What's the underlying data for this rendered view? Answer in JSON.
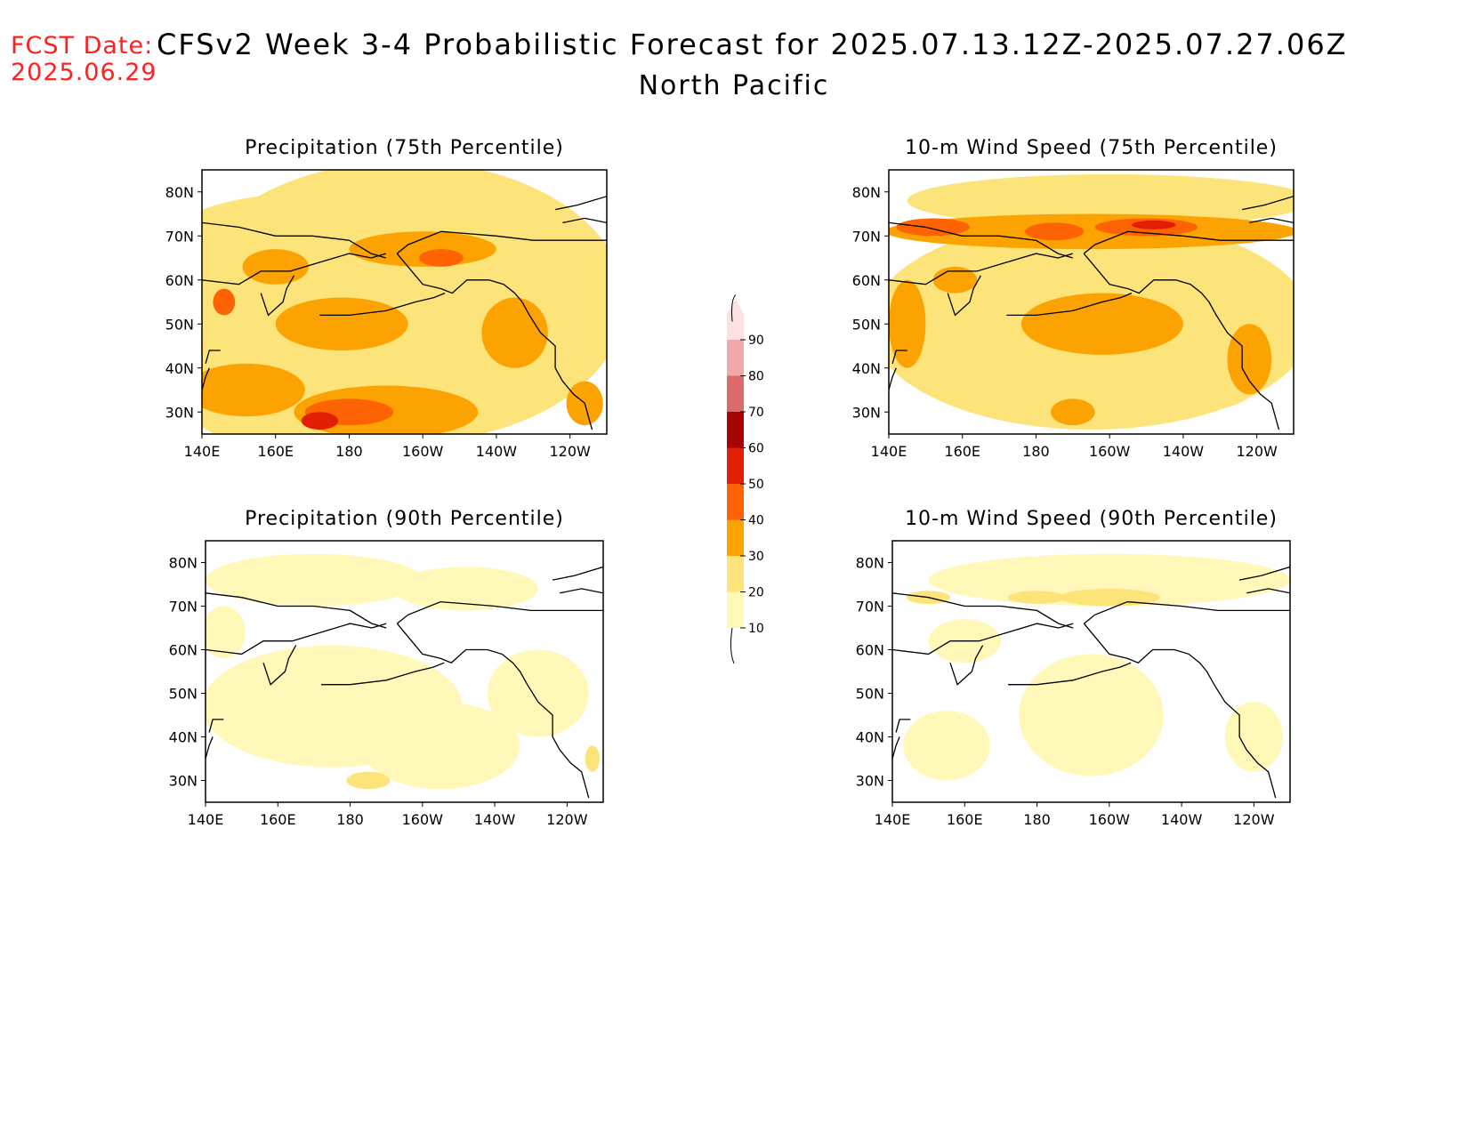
{
  "header": {
    "fcst_label": "FCST Date:",
    "fcst_date": "2025.06.29",
    "title": "CFSv2 Week 3-4 Probabilistic Forecast for 2025.07.13.12Z-2025.07.27.06Z",
    "region": "North Pacific"
  },
  "axes": {
    "lon_labels": [
      "140E",
      "160E",
      "180",
      "160W",
      "140W",
      "120W"
    ],
    "lat_labels": [
      "30N",
      "40N",
      "50N",
      "60N",
      "70N",
      "80N"
    ]
  },
  "panels": [
    {
      "title": "Precipitation (75th Percentile)"
    },
    {
      "title": "10-m Wind Speed (75th Percentile)"
    },
    {
      "title": "Precipitation (90th Percentile)"
    },
    {
      "title": "10-m Wind Speed (90th Percentile)"
    }
  ],
  "colorbar": {
    "levels": [
      "10",
      "20",
      "30",
      "40",
      "50",
      "60",
      "70",
      "80",
      "90"
    ],
    "colors": [
      "#fff8b8",
      "#fde47a",
      "#fca302",
      "#fd6303",
      "#e11f02",
      "#a50402",
      "#dd6a6a",
      "#f0a8a8",
      "#fde0e0"
    ]
  },
  "colors": {
    "c10": "#fff8b8",
    "c20": "#fde47a",
    "c30": "#fca302",
    "c40": "#fd6303",
    "c50": "#e11f02",
    "c60": "#a50402",
    "fcst": "#ff2020"
  }
}
